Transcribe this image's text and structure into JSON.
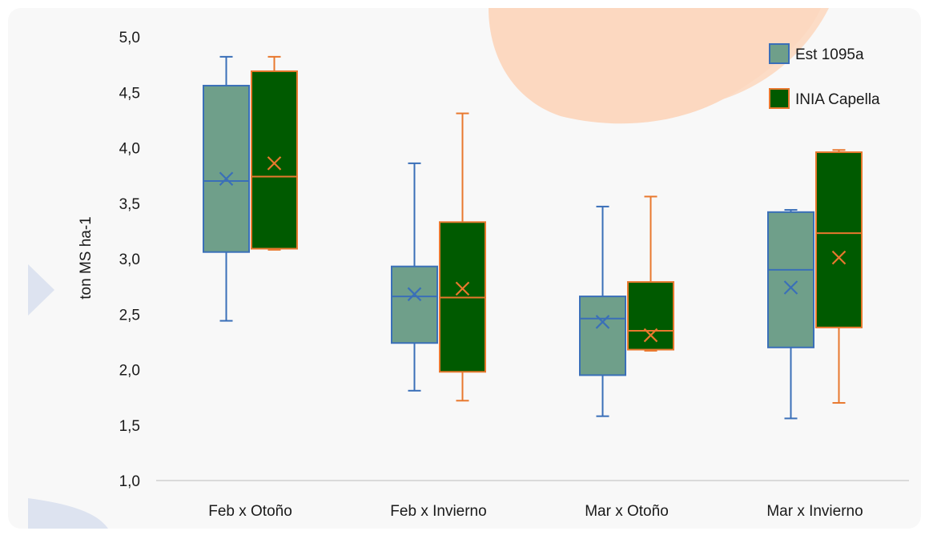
{
  "chart_data": {
    "type": "box",
    "title": "",
    "xlabel": "",
    "ylabel": "ton MS ha-1",
    "ylim": [
      1.0,
      5.0
    ],
    "ytick_values": [
      1.0,
      1.5,
      2.0,
      2.5,
      3.0,
      3.5,
      4.0,
      4.5,
      5.0
    ],
    "ytick_labels": [
      "1,0",
      "1,5",
      "2,0",
      "2,5",
      "3,0",
      "3,5",
      "4,0",
      "4,5",
      "5,0"
    ],
    "categories": [
      "Feb x Otoño",
      "Feb x Invierno",
      "Mar x Otoño",
      "Mar x Invierno"
    ],
    "legend_position": "top-right",
    "grid": false,
    "series": [
      {
        "name": "Est 1095a",
        "fill": "#6f9f8a",
        "stroke": "#3a6fb8",
        "boxes": [
          {
            "min": 2.44,
            "q1": 3.06,
            "median": 3.7,
            "mean": 3.72,
            "q3": 4.56,
            "max": 4.82
          },
          {
            "min": 1.81,
            "q1": 2.24,
            "median": 2.66,
            "mean": 2.68,
            "q3": 2.93,
            "max": 3.86
          },
          {
            "min": 1.58,
            "q1": 1.95,
            "median": 2.46,
            "mean": 2.43,
            "q3": 2.66,
            "max": 3.47
          },
          {
            "min": 1.56,
            "q1": 2.2,
            "median": 2.9,
            "mean": 2.74,
            "q3": 3.42,
            "max": 3.44
          }
        ]
      },
      {
        "name": "INIA Capella",
        "fill": "#005a00",
        "stroke": "#e8782e",
        "boxes": [
          {
            "min": 3.08,
            "q1": 3.09,
            "median": 3.74,
            "mean": 3.86,
            "q3": 4.69,
            "max": 4.82
          },
          {
            "min": 1.72,
            "q1": 1.98,
            "median": 2.65,
            "mean": 2.73,
            "q3": 3.33,
            "max": 4.31
          },
          {
            "min": 2.17,
            "q1": 2.18,
            "median": 2.35,
            "mean": 2.31,
            "q3": 2.79,
            "max": 3.56
          },
          {
            "min": 1.7,
            "q1": 2.38,
            "median": 3.23,
            "mean": 3.01,
            "q3": 3.96,
            "max": 3.98
          }
        ]
      }
    ]
  }
}
